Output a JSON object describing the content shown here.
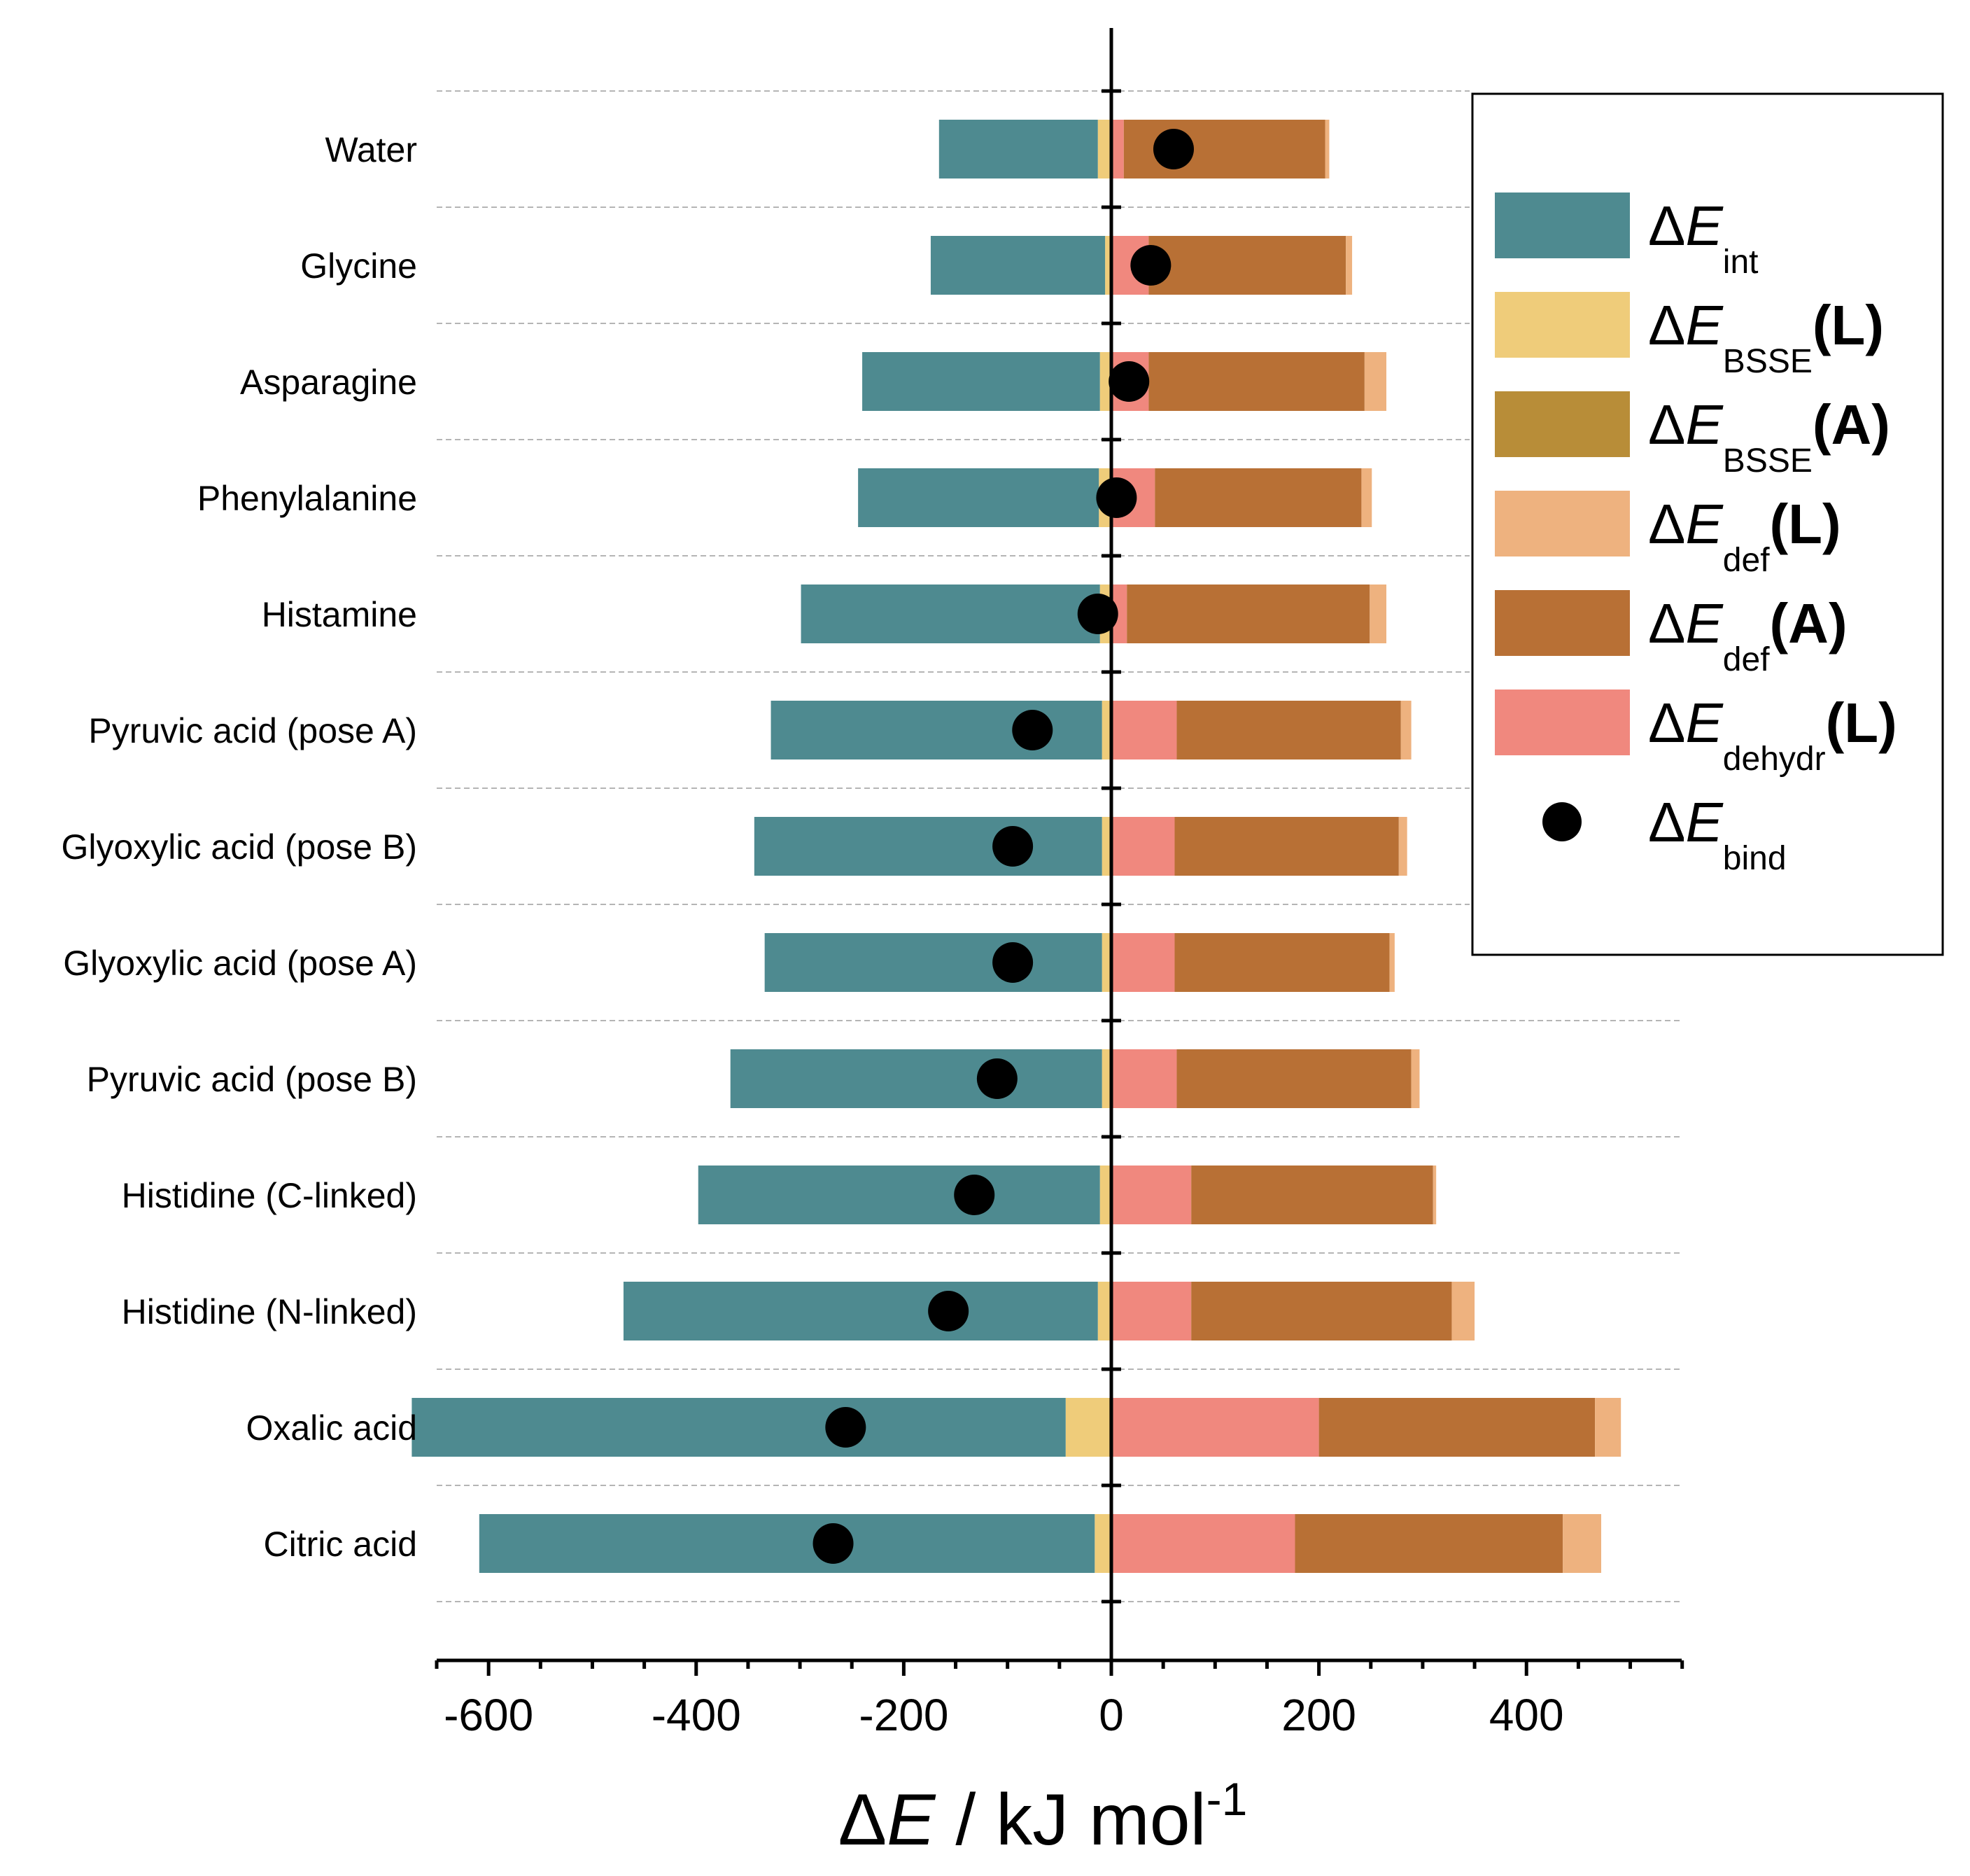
{
  "chart_data": {
    "type": "bar",
    "orientation": "horizontal",
    "stacked": true,
    "categories": [
      "Water",
      "Glycine",
      "Asparagine",
      "Phenylalanine",
      "Histamine",
      "Pyruvic acid (pose A)",
      "Glyoxylic acid (pose B)",
      "Glyoxylic acid (pose A)",
      "Pyruvic acid (pose B)",
      "Histidine (C-linked)",
      "Histidine (N-linked)",
      "Oxalic acid",
      "Citric acid"
    ],
    "series": [
      {
        "key": "int",
        "name": "ΔE int",
        "symbol": "E",
        "sub": "int",
        "arg": "",
        "color": "#4e8a90",
        "side": "negative",
        "values": [
          -153,
          -168,
          -229,
          -232,
          -288,
          -319,
          -335,
          -325,
          -358,
          -387,
          -457,
          -630,
          -593
        ]
      },
      {
        "key": "bsse_L",
        "name": "ΔE BSSE (L)",
        "symbol": "E",
        "sub": "BSSE",
        "arg": "L",
        "color": "#efcc7a",
        "side": "negative",
        "values": [
          -12,
          -5,
          -10,
          -11,
          -10,
          -8,
          -8,
          -8,
          -8,
          -10,
          -12,
          -42,
          -15
        ]
      },
      {
        "key": "bsse_A",
        "name": "ΔE BSSE (A)",
        "symbol": "E",
        "sub": "BSSE",
        "arg": "A",
        "color": "#b88d38",
        "side": "negative",
        "values": [
          -1,
          -1,
          -1,
          -1,
          -1,
          -1,
          -1,
          -1,
          -1,
          -1,
          -1,
          -2,
          -1
        ]
      },
      {
        "key": "dehydr_L",
        "name": "ΔE dehydr (L)",
        "symbol": "E",
        "sub": "dehydr",
        "arg": "L",
        "color": "#f0887e",
        "side": "positive",
        "values": [
          12,
          36,
          36,
          42,
          15,
          63,
          61,
          61,
          63,
          77,
          77,
          200,
          177
        ]
      },
      {
        "key": "def_A",
        "name": "ΔE def (A)",
        "symbol": "E",
        "sub": "def",
        "arg": "A",
        "color": "#b87035",
        "side": "positive",
        "values": [
          194,
          190,
          208,
          199,
          234,
          216,
          216,
          207,
          226,
          233,
          251,
          266,
          258
        ]
      },
      {
        "key": "def_L",
        "name": "ΔE def (L)",
        "symbol": "E",
        "sub": "def",
        "arg": "L",
        "color": "#eeb27f",
        "side": "positive",
        "values": [
          4,
          6,
          21,
          10,
          16,
          10,
          8,
          5,
          8,
          3,
          22,
          25,
          37
        ]
      }
    ],
    "points": {
      "key": "bind",
      "name": "ΔE bind",
      "symbol": "E",
      "sub": "bind",
      "arg": "",
      "color": "#000000",
      "values": [
        60,
        38,
        17,
        5,
        -13,
        -76,
        -95,
        -95,
        -110,
        -132,
        -157,
        -256,
        -268
      ]
    },
    "xlim": [
      -650,
      550
    ],
    "xticks": [
      -600,
      -400,
      -200,
      0,
      200,
      400
    ],
    "tick_labels": [
      "-600",
      "-400",
      "-200",
      "0",
      "200",
      "400"
    ],
    "xlabel": "ΔE / kJ mol-1",
    "xlabel_parts": {
      "delta": "Δ",
      "symbol": "E",
      "unit": " / kJ mol",
      "exp": "-1"
    },
    "grid": "horizontal dashed between categories",
    "legend_position": "top-right"
  }
}
